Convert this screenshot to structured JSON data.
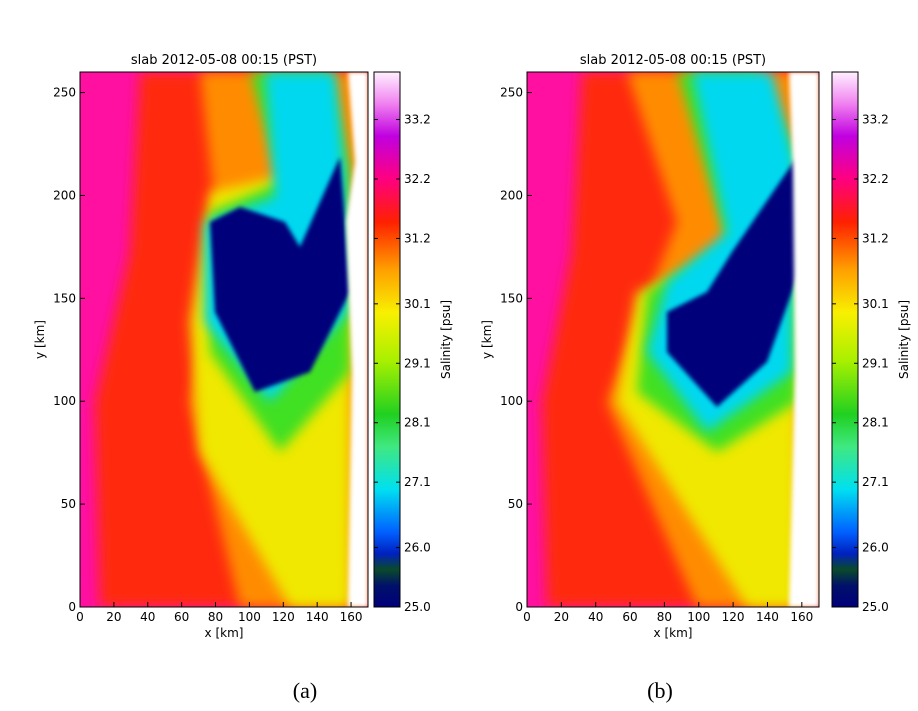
{
  "chart_data": [
    {
      "type": "heatmap",
      "title": "slab 2012-05-08 00:15 (PST)",
      "xlabel": "x [km]",
      "ylabel": "y [km]",
      "xlim": [
        0,
        170
      ],
      "ylim": [
        0,
        260
      ],
      "xticks": [
        0,
        20,
        40,
        60,
        80,
        100,
        120,
        140,
        160
      ],
      "yticks": [
        0,
        50,
        100,
        150,
        200,
        250
      ],
      "colorbar": {
        "label": "Salinity [psu]",
        "lim": [
          25,
          34
        ],
        "ticks": [
          {
            "value": 25,
            "label": "25.0"
          },
          {
            "value": 26,
            "label": "26.0"
          },
          27.1,
          28.1,
          29.1,
          30.1,
          31.2,
          32.2,
          33.2
        ]
      },
      "caption": "(a)"
    },
    {
      "type": "heatmap",
      "title": "slab 2012-05-08 00:15 (PST)",
      "xlabel": "x [km]",
      "ylabel": "y [km]",
      "xlim": [
        0,
        170
      ],
      "ylim": [
        0,
        260
      ],
      "xticks": [
        0,
        20,
        40,
        60,
        80,
        100,
        120,
        140,
        160
      ],
      "yticks": [
        0,
        50,
        100,
        150,
        200,
        250
      ],
      "colorbar": {
        "label": "Salinity [psu]",
        "lim": [
          25,
          34
        ],
        "ticks": [
          {
            "value": 25,
            "label": "25.0"
          },
          {
            "value": 26,
            "label": "26.0"
          },
          27.1,
          28.1,
          29.1,
          30.1,
          31.2,
          32.2,
          33.2
        ]
      },
      "caption": "(b)"
    }
  ]
}
